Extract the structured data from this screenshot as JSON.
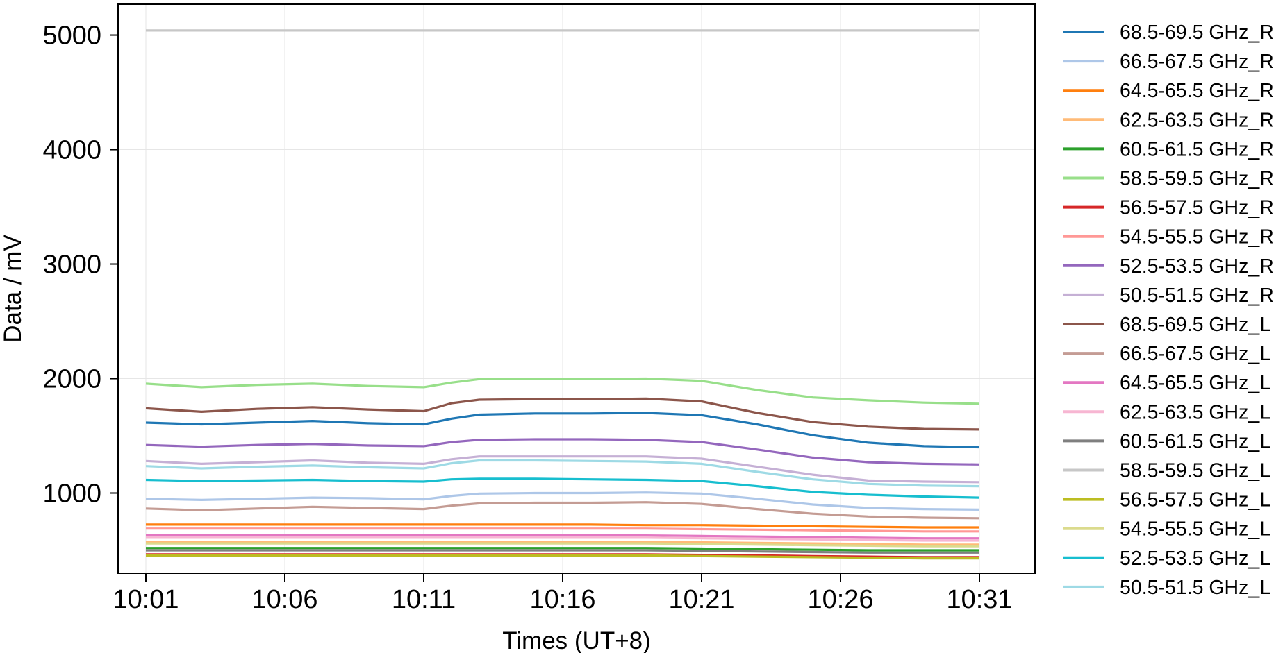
{
  "chart_data": {
    "type": "line",
    "xlabel": "Times (UT+8)",
    "ylabel": "Data / mV",
    "x_ticks": [
      "10:01",
      "10:06",
      "10:11",
      "10:16",
      "10:21",
      "10:26",
      "10:31"
    ],
    "x": [
      "10:01",
      "10:03",
      "10:05",
      "10:07",
      "10:09",
      "10:11",
      "10:12",
      "10:13",
      "10:15",
      "10:17",
      "10:19",
      "10:21",
      "10:23",
      "10:25",
      "10:27",
      "10:29",
      "10:31"
    ],
    "xlim": [
      "10:00",
      "10:33"
    ],
    "y_ticks": [
      1000,
      2000,
      3000,
      4000,
      5000
    ],
    "ylim": [
      300,
      5270
    ],
    "grid": true,
    "legend_position": "right, outside plot",
    "series": [
      {
        "name": "68.5-69.5 GHz_R",
        "color": "#1f77b4",
        "values": [
          1615,
          1600,
          1615,
          1630,
          1610,
          1600,
          1650,
          1685,
          1695,
          1695,
          1700,
          1680,
          1600,
          1505,
          1440,
          1410,
          1400
        ]
      },
      {
        "name": "66.5-67.5 GHz_R",
        "color": "#aec7e8",
        "values": [
          950,
          940,
          950,
          960,
          955,
          945,
          975,
          995,
          1000,
          1000,
          1005,
          995,
          950,
          900,
          870,
          860,
          855
        ]
      },
      {
        "name": "64.5-65.5 GHz_R",
        "color": "#ff7f0e",
        "values": [
          725,
          725,
          725,
          725,
          725,
          725,
          725,
          725,
          725,
          725,
          720,
          720,
          715,
          710,
          705,
          700,
          700
        ]
      },
      {
        "name": "62.5-63.5 GHz_R",
        "color": "#ffbb78",
        "values": [
          575,
          575,
          575,
          575,
          575,
          575,
          575,
          575,
          575,
          575,
          575,
          570,
          565,
          560,
          555,
          550,
          550
        ]
      },
      {
        "name": "60.5-61.5 GHz_R",
        "color": "#2ca02c",
        "values": [
          520,
          520,
          520,
          520,
          520,
          520,
          520,
          520,
          520,
          520,
          520,
          515,
          510,
          505,
          500,
          500,
          500
        ]
      },
      {
        "name": "58.5-59.5 GHz_R",
        "color": "#98df8a",
        "values": [
          1955,
          1925,
          1945,
          1955,
          1935,
          1925,
          1965,
          1995,
          1995,
          1995,
          2000,
          1980,
          1900,
          1835,
          1810,
          1790,
          1780
        ]
      },
      {
        "name": "56.5-57.5 GHz_R",
        "color": "#d62728",
        "values": [
          465,
          465,
          465,
          465,
          465,
          465,
          465,
          465,
          465,
          465,
          465,
          460,
          455,
          450,
          445,
          440,
          440
        ]
      },
      {
        "name": "54.5-55.5 GHz_R",
        "color": "#ff9896",
        "values": [
          690,
          690,
          690,
          690,
          690,
          690,
          690,
          690,
          690,
          690,
          690,
          685,
          680,
          675,
          670,
          665,
          665
        ]
      },
      {
        "name": "52.5-53.5 GHz_R",
        "color": "#9467bd",
        "values": [
          1420,
          1405,
          1420,
          1430,
          1415,
          1410,
          1445,
          1465,
          1470,
          1470,
          1465,
          1445,
          1380,
          1310,
          1270,
          1255,
          1250
        ]
      },
      {
        "name": "50.5-51.5 GHz_R",
        "color": "#c5b0d5",
        "values": [
          1280,
          1255,
          1270,
          1285,
          1265,
          1255,
          1295,
          1320,
          1320,
          1320,
          1320,
          1300,
          1230,
          1160,
          1110,
          1100,
          1095
        ]
      },
      {
        "name": "68.5-69.5 GHz_L",
        "color": "#8c564b",
        "values": [
          1740,
          1710,
          1735,
          1750,
          1730,
          1715,
          1785,
          1815,
          1820,
          1820,
          1825,
          1800,
          1700,
          1620,
          1580,
          1560,
          1555
        ]
      },
      {
        "name": "66.5-67.5 GHz_L",
        "color": "#c49c94",
        "values": [
          865,
          850,
          865,
          880,
          870,
          860,
          890,
          910,
          915,
          915,
          920,
          905,
          860,
          820,
          795,
          785,
          780
        ]
      },
      {
        "name": "64.5-65.5 GHz_L",
        "color": "#e377c2",
        "values": [
          630,
          630,
          630,
          630,
          630,
          630,
          630,
          630,
          630,
          630,
          630,
          625,
          620,
          615,
          610,
          605,
          605
        ]
      },
      {
        "name": "62.5-63.5 GHz_L",
        "color": "#f7b6d2",
        "values": [
          610,
          610,
          610,
          610,
          610,
          610,
          610,
          610,
          610,
          610,
          610,
          605,
          600,
          595,
          590,
          585,
          585
        ]
      },
      {
        "name": "60.5-61.5 GHz_L",
        "color": "#7f7f7f",
        "values": [
          500,
          500,
          500,
          500,
          500,
          500,
          500,
          500,
          500,
          500,
          500,
          495,
          490,
          485,
          480,
          480,
          480
        ]
      },
      {
        "name": "58.5-59.5 GHz_L",
        "color": "#c7c7c7",
        "values": [
          5040,
          5040,
          5040,
          5040,
          5040,
          5040,
          5040,
          5040,
          5040,
          5040,
          5040,
          5040,
          5040,
          5040,
          5040,
          5040,
          5040
        ]
      },
      {
        "name": "56.5-57.5 GHz_L",
        "color": "#bcbd22",
        "values": [
          455,
          455,
          455,
          455,
          455,
          455,
          455,
          455,
          455,
          455,
          455,
          450,
          445,
          440,
          435,
          430,
          430
        ]
      },
      {
        "name": "54.5-55.5 GHz_L",
        "color": "#dbdb8d",
        "values": [
          560,
          560,
          560,
          560,
          560,
          560,
          560,
          560,
          560,
          560,
          560,
          555,
          550,
          545,
          540,
          535,
          535
        ]
      },
      {
        "name": "52.5-53.5 GHz_L",
        "color": "#17becf",
        "values": [
          1115,
          1105,
          1110,
          1115,
          1105,
          1100,
          1120,
          1125,
          1125,
          1120,
          1115,
          1105,
          1060,
          1010,
          985,
          970,
          960
        ]
      },
      {
        "name": "50.5-51.5 GHz_L",
        "color": "#9edae5",
        "values": [
          1235,
          1215,
          1230,
          1240,
          1225,
          1215,
          1260,
          1285,
          1285,
          1280,
          1275,
          1255,
          1185,
          1120,
          1080,
          1065,
          1060
        ]
      }
    ]
  }
}
